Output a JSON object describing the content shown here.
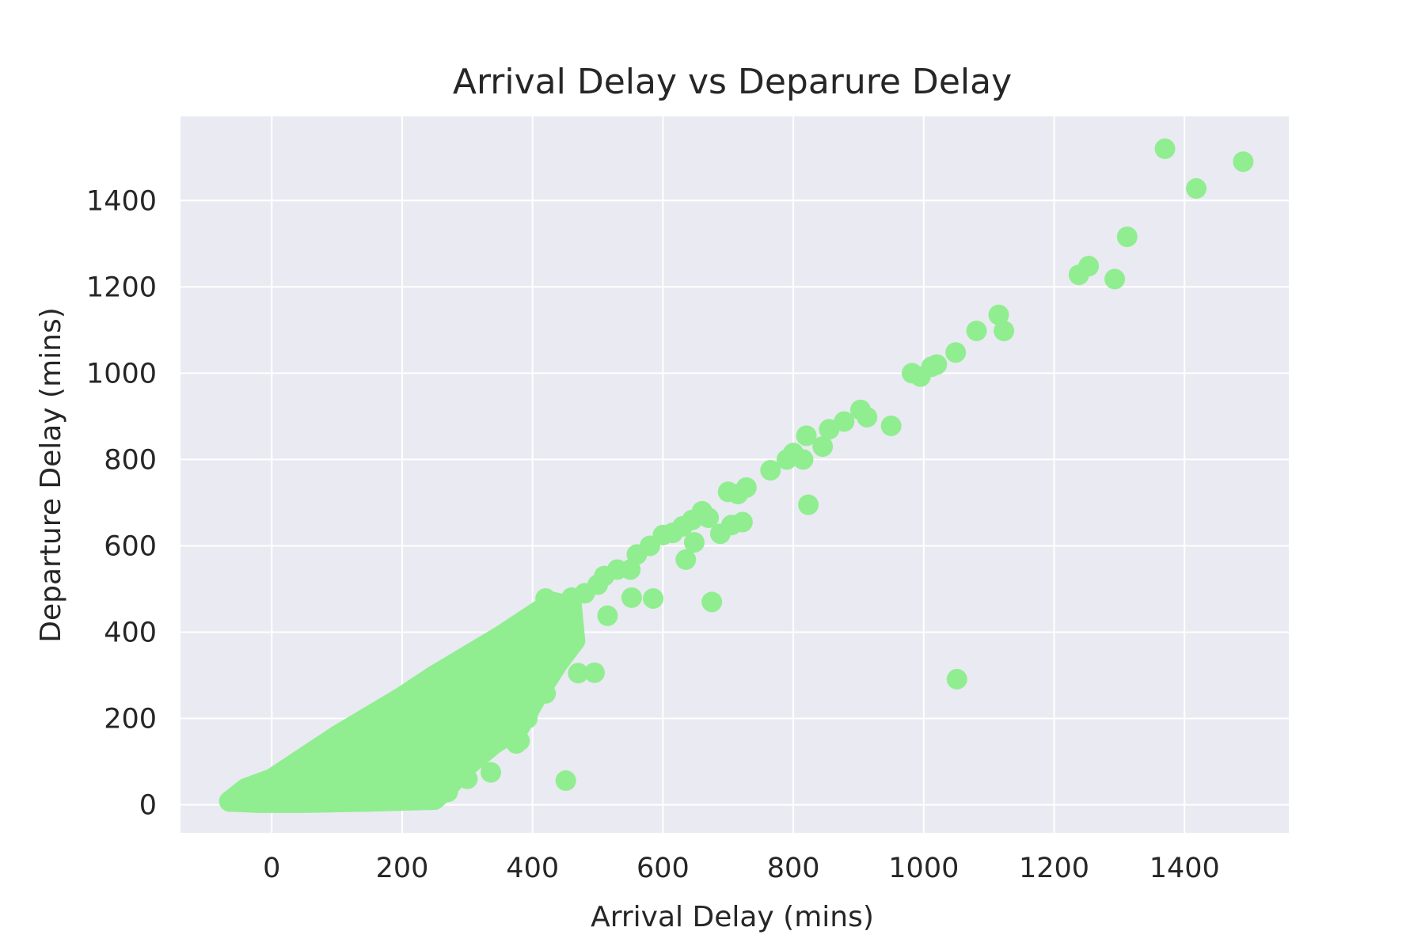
{
  "chart_data": {
    "type": "scatter",
    "title": "Arrival Delay vs Deparure Delay",
    "xlabel": "Arrival Delay (mins)",
    "ylabel": "Departure Delay (mins)",
    "xlim": [
      -140,
      1560
    ],
    "ylim": [
      -65,
      1595
    ],
    "xticks": [
      0,
      200,
      400,
      600,
      800,
      1000,
      1200,
      1400
    ],
    "yticks": [
      0,
      200,
      400,
      600,
      800,
      1000,
      1200,
      1400
    ],
    "grid": true,
    "colors": {
      "marker": "#90ee90",
      "background": "#eaeaf2",
      "grid": "#ffffff"
    },
    "points": [
      [
        1370,
        1520
      ],
      [
        1490,
        1490
      ],
      [
        1418,
        1428
      ],
      [
        1312,
        1316
      ],
      [
        1253,
        1248
      ],
      [
        1238,
        1228
      ],
      [
        1293,
        1218
      ],
      [
        1115,
        1135
      ],
      [
        1123,
        1098
      ],
      [
        1081,
        1098
      ],
      [
        1049,
        1048
      ],
      [
        1020,
        1020
      ],
      [
        1012,
        1015
      ],
      [
        982,
        1000
      ],
      [
        995,
        992
      ],
      [
        903,
        915
      ],
      [
        913,
        898
      ],
      [
        950,
        878
      ],
      [
        878,
        888
      ],
      [
        855,
        870
      ],
      [
        820,
        855
      ],
      [
        845,
        830
      ],
      [
        815,
        800
      ],
      [
        800,
        815
      ],
      [
        790,
        800
      ],
      [
        765,
        775
      ],
      [
        823,
        695
      ],
      [
        1051,
        291
      ],
      [
        675,
        470
      ],
      [
        451,
        56
      ],
      [
        728,
        735
      ],
      [
        715,
        720
      ],
      [
        700,
        725
      ],
      [
        722,
        655
      ],
      [
        705,
        648
      ],
      [
        688,
        628
      ],
      [
        670,
        665
      ],
      [
        660,
        680
      ],
      [
        645,
        660
      ],
      [
        630,
        645
      ],
      [
        635,
        568
      ],
      [
        648,
        608
      ],
      [
        615,
        630
      ],
      [
        600,
        625
      ],
      [
        580,
        600
      ],
      [
        585,
        478
      ],
      [
        560,
        580
      ],
      [
        550,
        545
      ],
      [
        552,
        480
      ],
      [
        530,
        545
      ],
      [
        510,
        530
      ],
      [
        515,
        438
      ],
      [
        500,
        510
      ],
      [
        495,
        306
      ],
      [
        470,
        305
      ],
      [
        480,
        490
      ],
      [
        460,
        480
      ],
      [
        455,
        430
      ],
      [
        440,
        460
      ],
      [
        420,
        478
      ],
      [
        408,
        312
      ],
      [
        400,
        440
      ],
      [
        383,
        390
      ],
      [
        380,
        148
      ],
      [
        375,
        142
      ],
      [
        420,
        258
      ],
      [
        392,
        200
      ],
      [
        336,
        75
      ],
      [
        300,
        60
      ],
      [
        270,
        30
      ],
      [
        250,
        20
      ],
      [
        230,
        15
      ],
      [
        200,
        12
      ],
      [
        -65,
        8
      ],
      [
        -55,
        15
      ],
      [
        -40,
        25
      ]
    ],
    "cloud_boundary": [
      [
        -65,
        8
      ],
      [
        -40,
        38
      ],
      [
        0,
        60
      ],
      [
        50,
        110
      ],
      [
        100,
        160
      ],
      [
        150,
        205
      ],
      [
        200,
        250
      ],
      [
        250,
        300
      ],
      [
        300,
        345
      ],
      [
        350,
        390
      ],
      [
        400,
        440
      ],
      [
        430,
        470
      ],
      [
        460,
        460
      ],
      [
        465,
        380
      ],
      [
        440,
        330
      ],
      [
        410,
        260
      ],
      [
        380,
        180
      ],
      [
        340,
        140
      ],
      [
        300,
        90
      ],
      [
        270,
        40
      ],
      [
        250,
        12
      ],
      [
        150,
        8
      ],
      [
        50,
        5
      ],
      [
        -20,
        5
      ]
    ]
  }
}
